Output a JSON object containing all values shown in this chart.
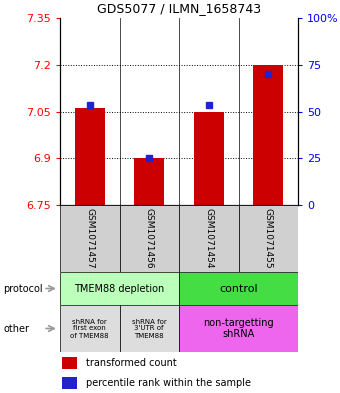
{
  "title": "GDS5077 / ILMN_1658743",
  "samples": [
    "GSM1071457",
    "GSM1071456",
    "GSM1071454",
    "GSM1071455"
  ],
  "bar_bottoms": [
    6.75,
    6.75,
    6.75,
    6.75
  ],
  "bar_tops": [
    7.06,
    6.9,
    7.05,
    7.2
  ],
  "percentile_values": [
    7.07,
    6.9,
    7.07,
    7.17
  ],
  "ylim": [
    6.75,
    7.35
  ],
  "yticks_left": [
    6.75,
    6.9,
    7.05,
    7.2,
    7.35
  ],
  "yticks_right_pct": [
    0,
    25,
    50,
    75,
    100
  ],
  "ytick_labels_left": [
    "6.75",
    "6.9",
    "7.05",
    "7.2",
    "7.35"
  ],
  "ytick_labels_right": [
    "0",
    "25",
    "50",
    "75",
    "100%"
  ],
  "hlines": [
    6.9,
    7.05,
    7.2
  ],
  "bar_color": "#cc0000",
  "blue_color": "#2222cc",
  "protocol_label_0": "TMEM88 depletion",
  "protocol_label_1": "control",
  "protocol_color_0": "#bbffbb",
  "protocol_color_1": "#44dd44",
  "other_label_0": "shRNA for\nfirst exon\nof TMEM88",
  "other_label_1": "shRNA for\n3'UTR of\nTMEM88",
  "other_label_2": "non-targetting\nshRNA",
  "other_color_0": "#dddddd",
  "other_color_1": "#dddddd",
  "other_color_2": "#ee66ee",
  "sample_box_color": "#d0d0d0",
  "arrow_color": "#999999",
  "legend_red_label": "transformed count",
  "legend_blue_label": "percentile rank within the sample",
  "bar_width": 0.5
}
